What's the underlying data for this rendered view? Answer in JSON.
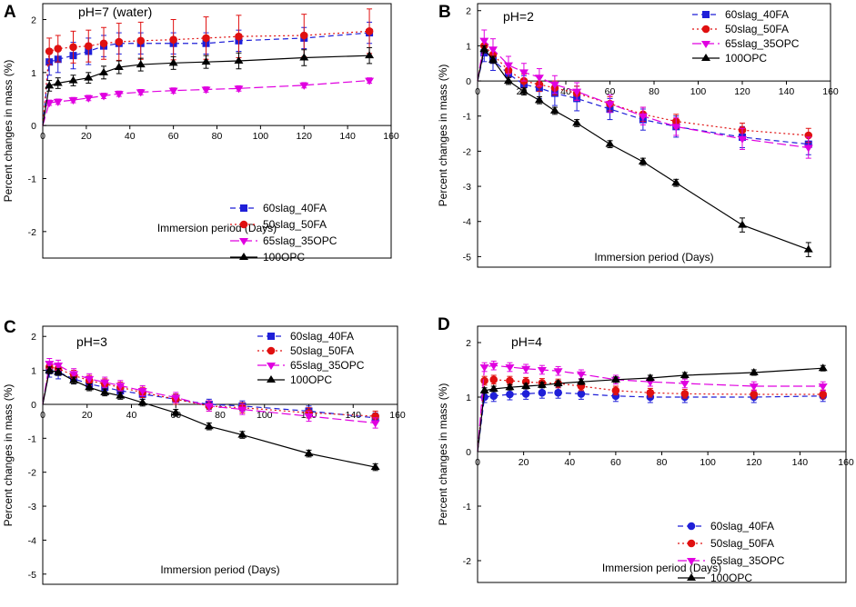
{
  "figure": {
    "panels": [
      "A",
      "B",
      "C",
      "D"
    ]
  },
  "chart_data": [
    {
      "panel": "A",
      "type": "line",
      "title": "pH=7 (water)",
      "xlabel": "Immersion period (Days)",
      "ylabel": "Percent changes in mass (%)",
      "xlim": [
        0,
        160
      ],
      "ylim": [
        -2.5,
        2.3
      ],
      "xticks": [
        0,
        20,
        40,
        60,
        80,
        100,
        120,
        140,
        160
      ],
      "yticks": [
        -2,
        -1,
        0,
        1,
        2
      ],
      "legend_position": "bottom-right",
      "x": [
        0,
        3,
        7,
        14,
        21,
        28,
        35,
        45,
        60,
        75,
        90,
        120,
        150
      ],
      "series": [
        {
          "name": "60slag_40FA",
          "color": "#1f1fd8",
          "dash": "6,4",
          "marker": "square",
          "values": [
            0,
            1.2,
            1.25,
            1.32,
            1.4,
            1.5,
            1.55,
            1.55,
            1.55,
            1.55,
            1.6,
            1.65,
            1.75
          ],
          "errors": [
            0,
            0.25,
            0.25,
            0.25,
            0.25,
            0.2,
            0.2,
            0.2,
            0.2,
            0.2,
            0.2,
            0.2,
            0.2
          ]
        },
        {
          "name": "50slag_50FA",
          "color": "#e01010",
          "dash": "2,3",
          "marker": "circle",
          "values": [
            0,
            1.4,
            1.45,
            1.48,
            1.5,
            1.55,
            1.58,
            1.6,
            1.62,
            1.65,
            1.68,
            1.7,
            1.78
          ],
          "errors": [
            0,
            0.25,
            0.25,
            0.3,
            0.3,
            0.3,
            0.35,
            0.35,
            0.38,
            0.4,
            0.4,
            0.4,
            0.42
          ]
        },
        {
          "name": "65slag_35OPC",
          "color": "#e000e0",
          "dash": "10,4",
          "marker": "triangle-down",
          "values": [
            0,
            0.43,
            0.45,
            0.48,
            0.52,
            0.56,
            0.6,
            0.63,
            0.66,
            0.68,
            0.7,
            0.76,
            0.85
          ],
          "errors": [
            0,
            0.05,
            0.05,
            0.05,
            0.05,
            0.05,
            0.05,
            0.05,
            0.05,
            0.05,
            0.05,
            0.05,
            0.05
          ]
        },
        {
          "name": "100OPC",
          "color": "#000000",
          "dash": "",
          "marker": "triangle-up",
          "values": [
            0,
            0.75,
            0.8,
            0.85,
            0.9,
            1.0,
            1.1,
            1.15,
            1.18,
            1.2,
            1.22,
            1.28,
            1.32
          ],
          "errors": [
            0,
            0.1,
            0.1,
            0.1,
            0.1,
            0.12,
            0.12,
            0.12,
            0.12,
            0.12,
            0.15,
            0.15,
            0.15
          ]
        }
      ]
    },
    {
      "panel": "B",
      "type": "line",
      "title": "pH=2",
      "xlabel": "Immersion period (Days)",
      "ylabel": "Percent changes in mass (%)",
      "xlim": [
        0,
        160
      ],
      "ylim": [
        -5.3,
        2.2
      ],
      "xticks": [
        0,
        20,
        40,
        60,
        80,
        100,
        120,
        140,
        160
      ],
      "yticks": [
        -5,
        -4,
        -3,
        -2,
        -1,
        0,
        1,
        2
      ],
      "legend_position": "top-right",
      "x": [
        0,
        3,
        7,
        14,
        21,
        28,
        35,
        45,
        60,
        75,
        90,
        120,
        150
      ],
      "series": [
        {
          "name": "60slag_40FA",
          "color": "#1f1fd8",
          "dash": "6,4",
          "marker": "square",
          "values": [
            0,
            0.8,
            0.6,
            0.2,
            -0.1,
            -0.2,
            -0.35,
            -0.5,
            -0.8,
            -1.1,
            -1.3,
            -1.6,
            -1.8
          ],
          "errors": [
            0,
            0.25,
            0.3,
            0.25,
            0.25,
            0.3,
            0.35,
            0.35,
            0.3,
            0.3,
            0.3,
            0.3,
            0.3
          ]
        },
        {
          "name": "50slag_50FA",
          "color": "#e01010",
          "dash": "2,3",
          "marker": "circle",
          "values": [
            0,
            1.0,
            0.75,
            0.3,
            0.0,
            -0.1,
            -0.2,
            -0.35,
            -0.65,
            -0.95,
            -1.15,
            -1.4,
            -1.55
          ],
          "errors": [
            0,
            0.2,
            0.2,
            0.2,
            0.2,
            0.2,
            0.2,
            0.2,
            0.2,
            0.2,
            0.2,
            0.2,
            0.2
          ]
        },
        {
          "name": "65slag_35OPC",
          "color": "#e000e0",
          "dash": "10,4",
          "marker": "triangle-down",
          "values": [
            0,
            1.15,
            0.9,
            0.45,
            0.25,
            0.1,
            -0.1,
            -0.3,
            -0.65,
            -1.0,
            -1.3,
            -1.65,
            -1.9
          ],
          "errors": [
            0,
            0.3,
            0.3,
            0.25,
            0.25,
            0.25,
            0.25,
            0.25,
            0.25,
            0.25,
            0.25,
            0.3,
            0.3
          ]
        },
        {
          "name": "100OPC",
          "color": "#000000",
          "dash": "",
          "marker": "triangle-up",
          "values": [
            0,
            0.9,
            0.6,
            0.0,
            -0.3,
            -0.55,
            -0.85,
            -1.2,
            -1.8,
            -2.3,
            -2.9,
            -4.1,
            -4.8
          ],
          "errors": [
            0,
            0.1,
            0.1,
            0.1,
            0.1,
            0.1,
            0.1,
            0.1,
            0.1,
            0.1,
            0.1,
            0.2,
            0.2
          ]
        }
      ]
    },
    {
      "panel": "C",
      "type": "line",
      "title": "pH=3",
      "xlabel": "Immersion period (Days)",
      "ylabel": "Percent changes in mass (%)",
      "xlim": [
        0,
        160
      ],
      "ylim": [
        -5.3,
        2.3
      ],
      "xticks": [
        0,
        20,
        40,
        60,
        80,
        100,
        120,
        140,
        160
      ],
      "yticks": [
        -5,
        -4,
        -3,
        -2,
        -1,
        0,
        1,
        2
      ],
      "legend_position": "top-right",
      "x": [
        0,
        3,
        7,
        14,
        21,
        28,
        35,
        45,
        60,
        75,
        90,
        120,
        150
      ],
      "series": [
        {
          "name": "60slag_40FA",
          "color": "#1f1fd8",
          "dash": "6,4",
          "marker": "square",
          "values": [
            0,
            1.0,
            0.95,
            0.75,
            0.6,
            0.5,
            0.4,
            0.3,
            0.15,
            0.0,
            -0.05,
            -0.2,
            -0.4
          ],
          "errors": [
            0,
            0.2,
            0.2,
            0.15,
            0.15,
            0.15,
            0.15,
            0.15,
            0.15,
            0.15,
            0.15,
            0.15,
            0.15
          ]
        },
        {
          "name": "50slag_50FA",
          "color": "#e01010",
          "dash": "2,3",
          "marker": "circle",
          "values": [
            0,
            1.1,
            1.05,
            0.85,
            0.7,
            0.6,
            0.5,
            0.35,
            0.15,
            -0.05,
            -0.1,
            -0.25,
            -0.35
          ],
          "errors": [
            0,
            0.15,
            0.15,
            0.15,
            0.15,
            0.15,
            0.15,
            0.15,
            0.15,
            0.15,
            0.15,
            0.15,
            0.15
          ]
        },
        {
          "name": "65slag_35OPC",
          "color": "#e000e0",
          "dash": "10,4",
          "marker": "triangle-down",
          "values": [
            0,
            1.2,
            1.15,
            0.9,
            0.75,
            0.65,
            0.55,
            0.4,
            0.2,
            -0.05,
            -0.15,
            -0.35,
            -0.55
          ],
          "errors": [
            0,
            0.15,
            0.15,
            0.15,
            0.15,
            0.15,
            0.15,
            0.15,
            0.15,
            0.15,
            0.15,
            0.15,
            0.15
          ]
        },
        {
          "name": "100OPC",
          "color": "#000000",
          "dash": "",
          "marker": "triangle-up",
          "values": [
            0,
            1.0,
            0.95,
            0.7,
            0.5,
            0.35,
            0.25,
            0.05,
            -0.25,
            -0.65,
            -0.9,
            -1.45,
            -1.85
          ],
          "errors": [
            0,
            0.1,
            0.1,
            0.1,
            0.1,
            0.1,
            0.1,
            0.1,
            0.1,
            0.1,
            0.1,
            0.1,
            0.1
          ]
        }
      ]
    },
    {
      "panel": "D",
      "type": "line",
      "title": "pH=4",
      "xlabel": "Immersion period (Days)",
      "ylabel": "Percent changes in mass (%)",
      "xlim": [
        0,
        160
      ],
      "ylim": [
        -2.4,
        2.3
      ],
      "xticks": [
        0,
        20,
        40,
        60,
        80,
        100,
        120,
        140,
        160
      ],
      "yticks": [
        -2,
        -1,
        0,
        1,
        2
      ],
      "legend_position": "bottom-right",
      "x": [
        0,
        3,
        7,
        14,
        21,
        28,
        35,
        45,
        60,
        75,
        90,
        120,
        150
      ],
      "series": [
        {
          "name": "60slag_40FA",
          "color": "#1f1fd8",
          "dash": "6,4",
          "marker": "circle",
          "values": [
            0,
            1.0,
            1.02,
            1.05,
            1.06,
            1.08,
            1.08,
            1.06,
            1.02,
            1.0,
            1.0,
            1.0,
            1.02
          ],
          "errors": [
            0,
            0.1,
            0.1,
            0.1,
            0.1,
            0.1,
            0.1,
            0.1,
            0.1,
            0.1,
            0.1,
            0.1,
            0.1
          ]
        },
        {
          "name": "50slag_50FA",
          "color": "#e01010",
          "dash": "2,3",
          "marker": "circle",
          "values": [
            0,
            1.3,
            1.32,
            1.3,
            1.28,
            1.26,
            1.25,
            1.2,
            1.12,
            1.08,
            1.06,
            1.05,
            1.05
          ],
          "errors": [
            0,
            0.08,
            0.08,
            0.08,
            0.08,
            0.08,
            0.08,
            0.08,
            0.08,
            0.08,
            0.08,
            0.08,
            0.08
          ]
        },
        {
          "name": "65slag_35OPC",
          "color": "#e000e0",
          "dash": "10,4",
          "marker": "triangle-down",
          "values": [
            0,
            1.55,
            1.58,
            1.55,
            1.52,
            1.5,
            1.48,
            1.42,
            1.32,
            1.28,
            1.25,
            1.2,
            1.2
          ],
          "errors": [
            0,
            0.08,
            0.08,
            0.08,
            0.08,
            0.08,
            0.08,
            0.08,
            0.08,
            0.08,
            0.08,
            0.08,
            0.08
          ]
        },
        {
          "name": "100OPC",
          "color": "#000000",
          "dash": "",
          "marker": "triangle-up",
          "values": [
            0,
            1.12,
            1.15,
            1.18,
            1.2,
            1.22,
            1.25,
            1.28,
            1.32,
            1.35,
            1.4,
            1.45,
            1.53
          ],
          "errors": [
            0,
            0.05,
            0.05,
            0.05,
            0.05,
            0.05,
            0.05,
            0.05,
            0.05,
            0.05,
            0.05,
            0.05,
            0.05
          ]
        }
      ]
    }
  ]
}
